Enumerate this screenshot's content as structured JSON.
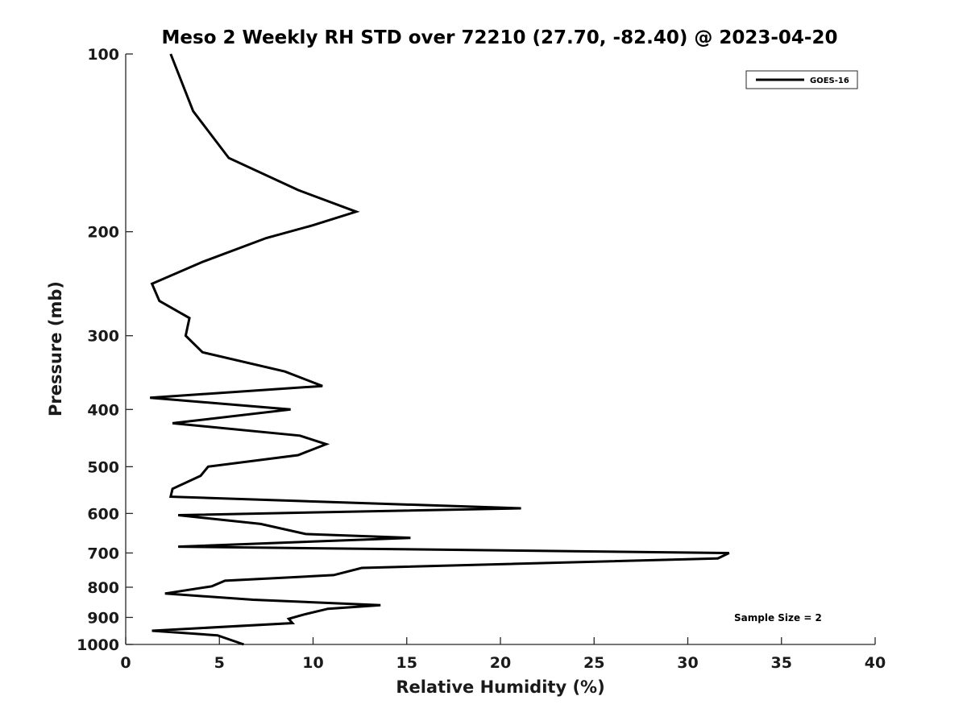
{
  "chart_data": {
    "type": "line",
    "title": "Meso 2 Weekly RH STD over 72210 (27.70, -82.40) @ 2023-04-20",
    "xlabel": "Relative Humidity (%)",
    "ylabel": "Pressure (mb)",
    "xlim": [
      0,
      40
    ],
    "ylim": [
      100,
      1000
    ],
    "yscale": "log",
    "y_inverted": true,
    "grid": false,
    "x_ticks": [
      "0",
      "5",
      "10",
      "15",
      "20",
      "25",
      "30",
      "35",
      "40"
    ],
    "y_ticks": [
      "100",
      "200",
      "300",
      "400",
      "500",
      "600",
      "700",
      "800",
      "900",
      "1000"
    ],
    "legend_position": "top-right",
    "series": [
      {
        "name": "GOES-16",
        "color": "#000000",
        "points": [
          [
            2.4,
            100
          ],
          [
            3.6,
            125
          ],
          [
            5.5,
            150
          ],
          [
            9.2,
            170
          ],
          [
            12.3,
            185
          ],
          [
            10.0,
            195
          ],
          [
            7.5,
            205
          ],
          [
            4.1,
            225
          ],
          [
            1.4,
            245
          ],
          [
            1.8,
            262
          ],
          [
            3.4,
            280
          ],
          [
            3.2,
            300
          ],
          [
            4.1,
            320
          ],
          [
            8.5,
            345
          ],
          [
            10.5,
            365
          ],
          [
            1.3,
            382
          ],
          [
            8.8,
            400
          ],
          [
            2.5,
            422
          ],
          [
            9.3,
            443
          ],
          [
            10.7,
            458
          ],
          [
            9.2,
            478
          ],
          [
            4.4,
            500
          ],
          [
            4.0,
            518
          ],
          [
            2.5,
            545
          ],
          [
            2.4,
            562
          ],
          [
            21.1,
            588
          ],
          [
            2.8,
            604
          ],
          [
            7.2,
            625
          ],
          [
            9.6,
            650
          ],
          [
            15.2,
            660
          ],
          [
            2.8,
            683
          ],
          [
            32.2,
            700
          ],
          [
            31.6,
            715
          ],
          [
            12.6,
            742
          ],
          [
            11.1,
            763
          ],
          [
            5.3,
            780
          ],
          [
            4.6,
            797
          ],
          [
            2.1,
            820
          ],
          [
            6.8,
            840
          ],
          [
            13.6,
            858
          ],
          [
            10.8,
            870
          ],
          [
            9.5,
            890
          ],
          [
            8.7,
            905
          ],
          [
            8.9,
            920
          ],
          [
            1.4,
            948
          ],
          [
            4.9,
            965
          ],
          [
            6.3,
            1000
          ]
        ]
      }
    ],
    "annotation": "Sample Size = 2",
    "legend_label": "GOES-16"
  }
}
